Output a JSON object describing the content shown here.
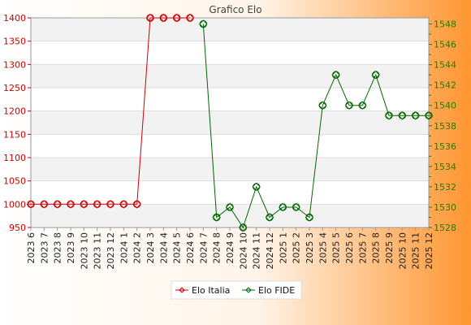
{
  "chart_data": {
    "type": "line",
    "title": "Grafico Elo",
    "categories": [
      "2023 6",
      "2023 7",
      "2023 8",
      "2023 9",
      "2023 10",
      "2023 11",
      "2023 12",
      "2024 1",
      "2024 2",
      "2024 3",
      "2024 4",
      "2024 5",
      "2024 6",
      "2024 7",
      "2024 8",
      "2024 9",
      "2024 10",
      "2024 11",
      "2024 12",
      "2025 1",
      "2025 2",
      "2025 3",
      "2025 4",
      "2025 5",
      "2025 6",
      "2025 7",
      "2025 8",
      "2025 9",
      "2025 10",
      "2025 11",
      "2025 12"
    ],
    "y_left": {
      "ylim": [
        950,
        1400
      ],
      "ticks": [
        950,
        1000,
        1050,
        1100,
        1150,
        1200,
        1250,
        1300,
        1350,
        1400
      ]
    },
    "y_right": {
      "ylim": [
        1528,
        1548.6
      ],
      "ticks": [
        1528,
        1530,
        1532,
        1534,
        1536,
        1538,
        1540,
        1542,
        1544,
        1546,
        1548
      ]
    },
    "series": [
      {
        "name": "Elo Italia",
        "axis": "left",
        "color": "#cc0000",
        "values": [
          1000,
          1000,
          1000,
          1000,
          1000,
          1000,
          1000,
          1000,
          1000,
          1400,
          1400,
          1400,
          1400,
          null,
          null,
          null,
          null,
          null,
          null,
          null,
          null,
          null,
          null,
          null,
          null,
          null,
          null,
          null,
          null,
          null,
          null
        ]
      },
      {
        "name": "Elo FIDE",
        "axis": "right",
        "color": "#006600",
        "values": [
          null,
          null,
          null,
          null,
          null,
          null,
          null,
          null,
          null,
          null,
          null,
          null,
          null,
          1548,
          1529,
          1530,
          1528,
          1532,
          1529,
          1530,
          1530,
          1529,
          1540,
          1543,
          1540,
          1540,
          1543,
          1539,
          1539,
          1539,
          1539
        ]
      }
    ],
    "grid": true,
    "legend": "bottom-center"
  }
}
